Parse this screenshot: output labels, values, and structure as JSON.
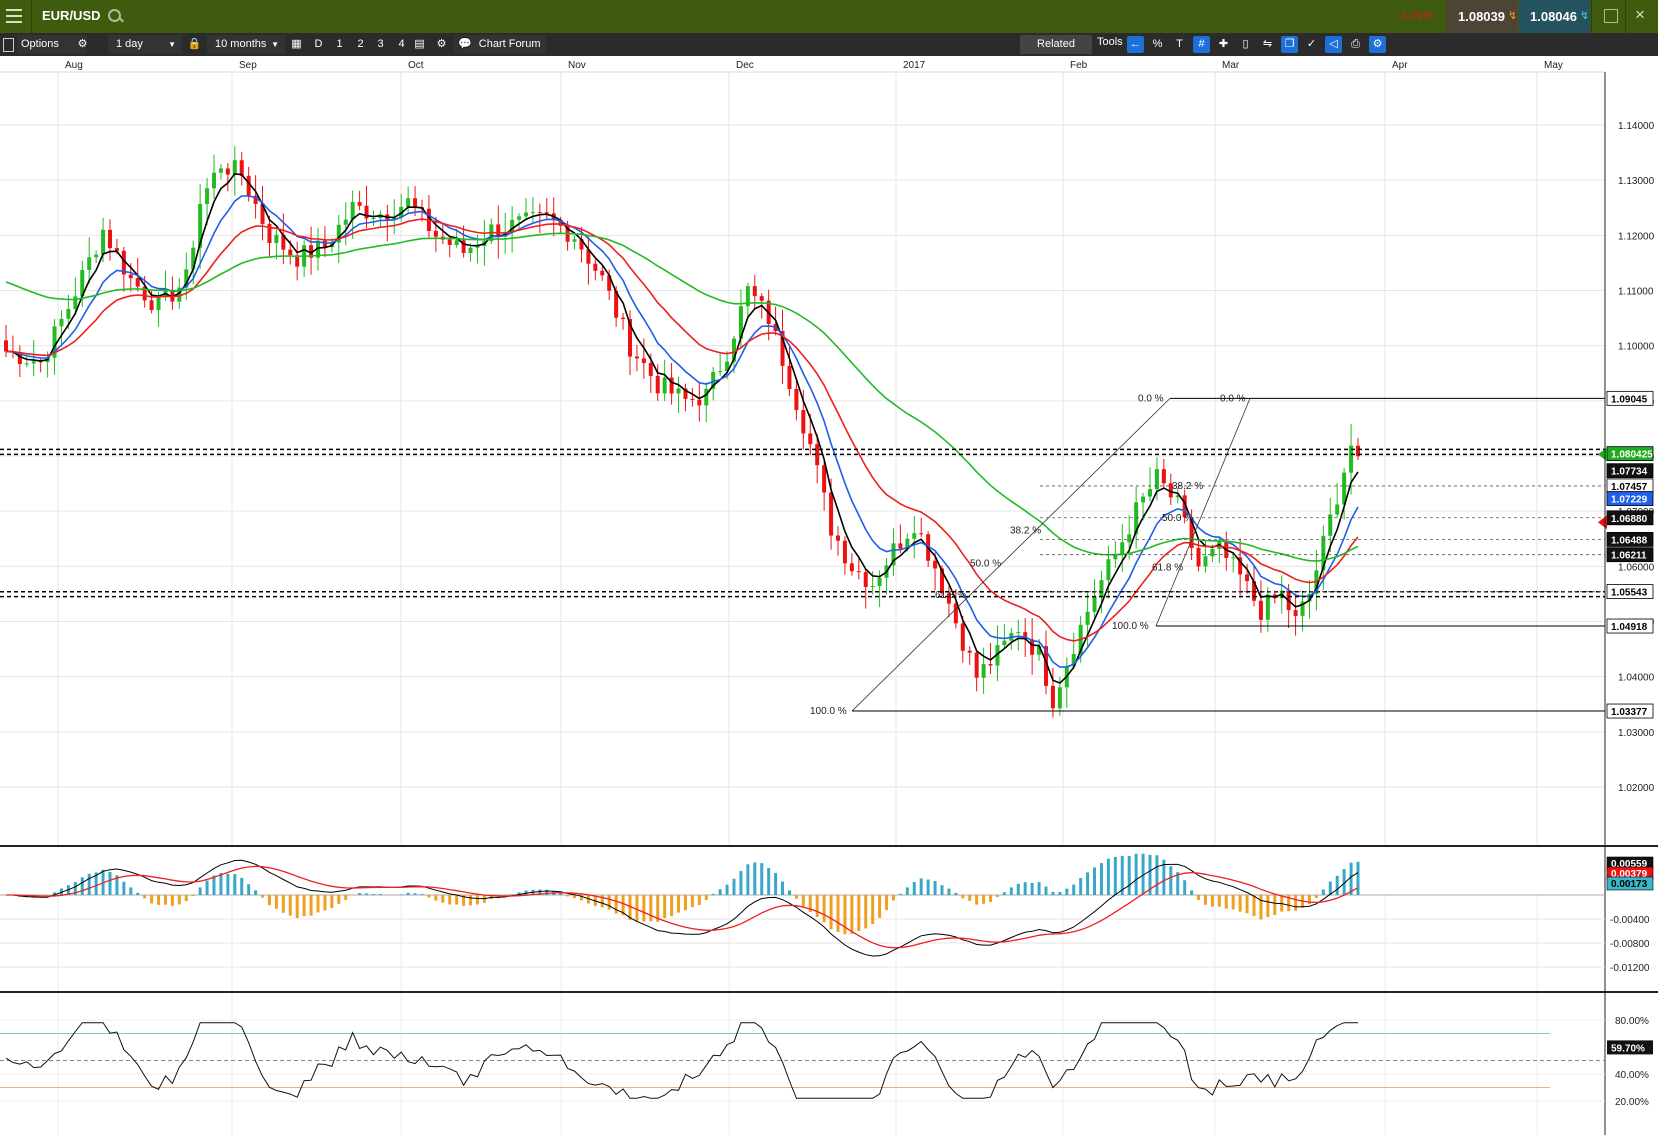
{
  "instrument": "EUR/USD",
  "change_pct": "-1.01%",
  "sell_price": "1.08039",
  "buy_price": "1.08046",
  "toolbar": {
    "options": "Options",
    "interval": "1 day",
    "range": "10 months",
    "timeframes": [
      "D",
      "1",
      "2",
      "3",
      "4"
    ],
    "chart_forum": "Chart Forum",
    "related": "Related",
    "tools": "Tools"
  },
  "months": [
    "Aug",
    "Sep",
    "Oct",
    "Nov",
    "Dec",
    "2017",
    "Feb",
    "Mar",
    "Apr",
    "May"
  ],
  "colors": {
    "up": "#22bb22",
    "down": "#ee1111",
    "ma_short": "#000000",
    "ma_mid": "#1f5eea",
    "ma_long": "#ee2020",
    "ma_200": "#22bb22",
    "macd_pos": "#38a8c8",
    "macd_neg": "#f0a020"
  },
  "chart_data": [
    {
      "type": "candlestick",
      "pane": "price",
      "y_ticks": [
        "1.14000",
        "1.13000",
        "1.12000",
        "1.11000",
        "1.10000",
        "1.09000",
        "1.08000",
        "1.07000",
        "1.06000",
        "1.05000",
        "1.04000",
        "1.03000",
        "1.02000"
      ],
      "ylim": [
        1.0133,
        1.1529
      ],
      "price_labels": [
        "1.09045",
        "1.080425",
        "1.07734",
        "1.07457",
        "1.07229",
        "1.06880",
        "1.06488",
        "1.06211",
        "1.05543",
        "1.04918",
        "1.03377"
      ],
      "fib_labels": [
        "0.0 %",
        "0.0 %",
        "38.2 %",
        "50.0 %",
        "61.8 %",
        "100.0 %",
        "38.2 %",
        "50.0 %",
        "61.8 %",
        "100.0 %"
      ],
      "series": [
        {
          "name": "Short MA",
          "color": "#000000"
        },
        {
          "name": "Mid MA",
          "color": "#1f5eea"
        },
        {
          "name": "Long MA",
          "color": "#ee2020"
        },
        {
          "name": "200 MA",
          "color": "#22bb22"
        }
      ]
    },
    {
      "type": "histogram",
      "pane": "macd",
      "y_ticks": [
        "-0.00400",
        "-0.00800",
        "-0.01200"
      ],
      "value_labels": [
        "0.00559",
        "0.00379",
        "0.00173"
      ]
    },
    {
      "type": "line",
      "pane": "rsi",
      "y_ticks": [
        "80.00%",
        "40.00%",
        "20.00%"
      ],
      "value_label": "59.70%"
    }
  ]
}
